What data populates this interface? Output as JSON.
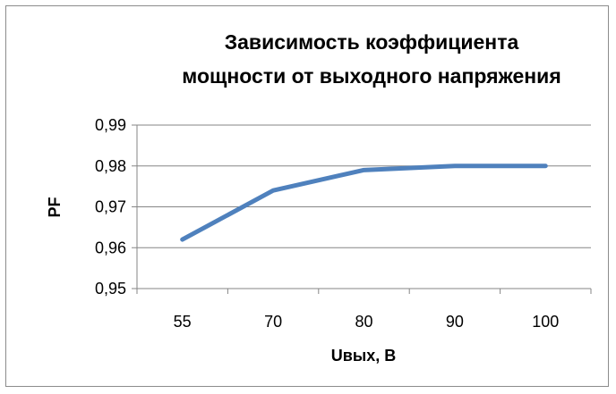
{
  "chart_data": {
    "type": "line",
    "title_lines": [
      "Зависимость коэффициента",
      "мощности от выходного напряжения"
    ],
    "xlabel": "Uвых, В",
    "ylabel": "PF",
    "categories": [
      "55",
      "70",
      "80",
      "90",
      "100"
    ],
    "series": [
      {
        "values": [
          0.962,
          0.974,
          0.979,
          0.98,
          0.98
        ]
      }
    ],
    "ylim": [
      0.95,
      0.99
    ],
    "yticks": [
      "0,95",
      "0,96",
      "0,97",
      "0,98",
      "0,99"
    ],
    "grid": true,
    "legend": "none",
    "colors": {
      "line": "#4f81bd",
      "grid": "#868686",
      "axis": "#868686"
    }
  }
}
